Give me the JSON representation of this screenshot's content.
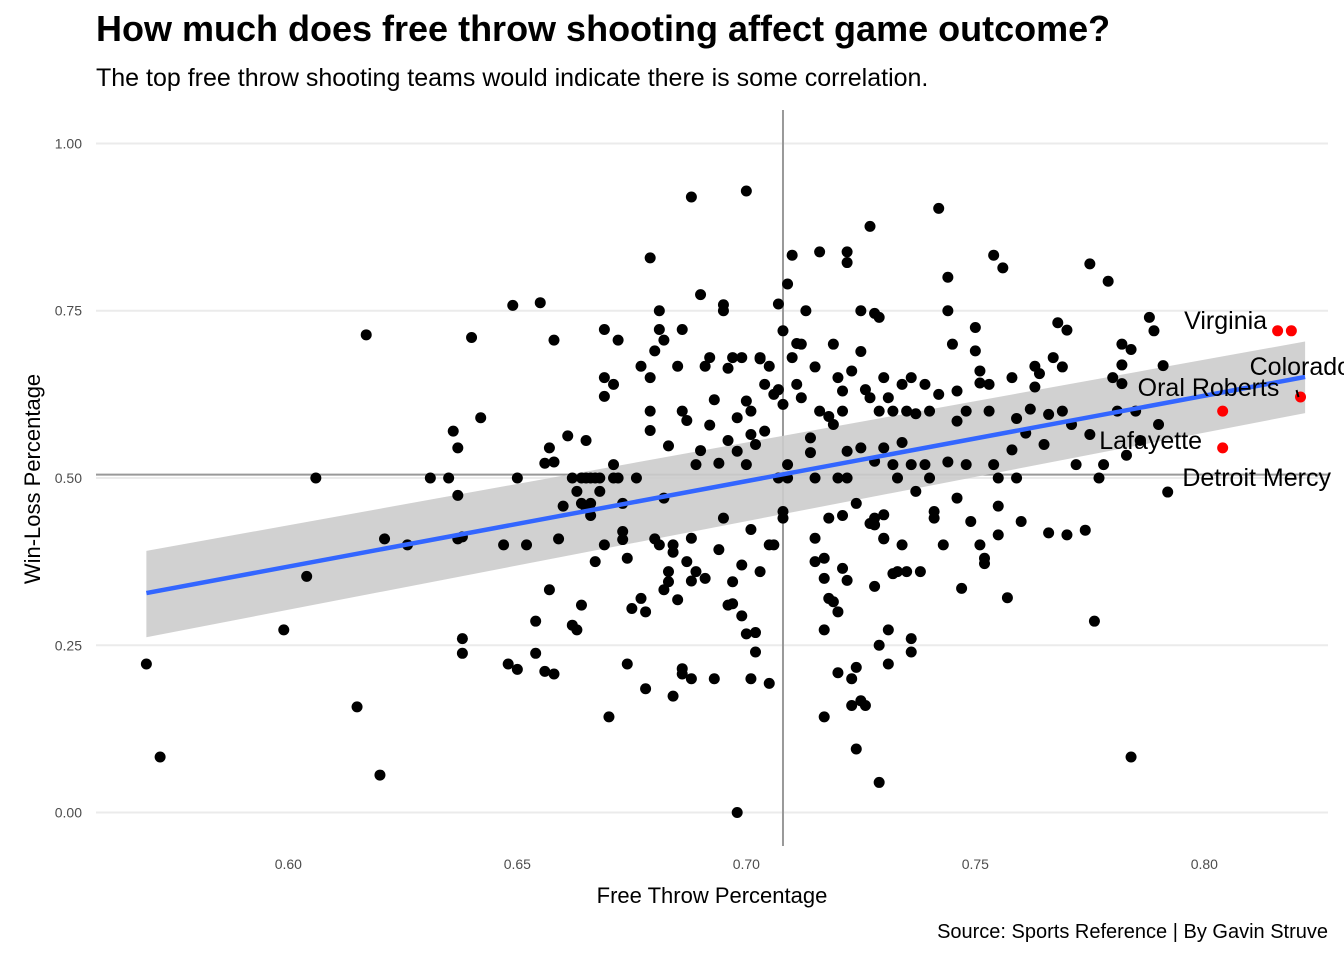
{
  "chart_data": {
    "type": "scatter",
    "title": "How much does free throw shooting affect game outcome?",
    "subtitle": "The top free throw shooting teams would indicate there is some correlation.",
    "caption": "Source: Sports Reference | By Gavin Struve",
    "xlabel": "Free Throw Percentage",
    "ylabel": "Win-Loss Percentage",
    "xlim": [
      0.558,
      0.827
    ],
    "ylim": [
      -0.05,
      1.05
    ],
    "xticks": [
      "0.60",
      "0.65",
      "0.70",
      "0.75",
      "0.80"
    ],
    "yticks": [
      "0.00",
      "0.25",
      "0.50",
      "0.75",
      "1.00"
    ],
    "grid": "horizontal",
    "reference_lines": {
      "mean_x": 0.708,
      "mean_y": 0.505
    },
    "trend": {
      "method": "lm",
      "x": [
        0.569,
        0.822
      ],
      "y": [
        0.328,
        0.651
      ],
      "ci_low": [
        0.262,
        0.597
      ],
      "ci_high": [
        0.391,
        0.704
      ]
    },
    "colors": {
      "points": "#000000",
      "highlight": "#ff0000",
      "trend": "#3366ff",
      "band": "#cccccc",
      "refline": "#999999"
    },
    "highlighted": [
      {
        "name": "Virginia",
        "x": 0.816,
        "y": 0.72
      },
      {
        "name": "Colorado",
        "x": 0.819,
        "y": 0.72
      },
      {
        "name": "Oral Roberts",
        "x": 0.821,
        "y": 0.621
      },
      {
        "name": "Lafayette",
        "x": 0.804,
        "y": 0.6
      },
      {
        "name": "Detroit Mercy",
        "x": 0.804,
        "y": 0.545
      }
    ],
    "points": [
      [
        0.569,
        0.222
      ],
      [
        0.572,
        0.083
      ],
      [
        0.599,
        0.273
      ],
      [
        0.604,
        0.353
      ],
      [
        0.606,
        0.5
      ],
      [
        0.615,
        0.158
      ],
      [
        0.617,
        0.714
      ],
      [
        0.62,
        0.056
      ],
      [
        0.621,
        0.409
      ],
      [
        0.626,
        0.4
      ],
      [
        0.631,
        0.5
      ],
      [
        0.635,
        0.5
      ],
      [
        0.636,
        0.57
      ],
      [
        0.637,
        0.545
      ],
      [
        0.637,
        0.474
      ],
      [
        0.637,
        0.409
      ],
      [
        0.638,
        0.412
      ],
      [
        0.638,
        0.26
      ],
      [
        0.638,
        0.238
      ],
      [
        0.64,
        0.71
      ],
      [
        0.642,
        0.59
      ],
      [
        0.647,
        0.4
      ],
      [
        0.648,
        0.222
      ],
      [
        0.649,
        0.758
      ],
      [
        0.65,
        0.214
      ],
      [
        0.65,
        0.5
      ],
      [
        0.652,
        0.4
      ],
      [
        0.654,
        0.286
      ],
      [
        0.654,
        0.238
      ],
      [
        0.655,
        0.762
      ],
      [
        0.656,
        0.211
      ],
      [
        0.656,
        0.522
      ],
      [
        0.657,
        0.333
      ],
      [
        0.657,
        0.545
      ],
      [
        0.658,
        0.524
      ],
      [
        0.658,
        0.706
      ],
      [
        0.658,
        0.207
      ],
      [
        0.659,
        0.409
      ],
      [
        0.66,
        0.458
      ],
      [
        0.661,
        0.563
      ],
      [
        0.662,
        0.28
      ],
      [
        0.662,
        0.5
      ],
      [
        0.663,
        0.273
      ],
      [
        0.663,
        0.48
      ],
      [
        0.664,
        0.5
      ],
      [
        0.664,
        0.462
      ],
      [
        0.664,
        0.31
      ],
      [
        0.665,
        0.556
      ],
      [
        0.665,
        0.455
      ],
      [
        0.665,
        0.5
      ],
      [
        0.666,
        0.5
      ],
      [
        0.666,
        0.444
      ],
      [
        0.666,
        0.462
      ],
      [
        0.667,
        0.5
      ],
      [
        0.667,
        0.375
      ],
      [
        0.668,
        0.5
      ],
      [
        0.668,
        0.48
      ],
      [
        0.669,
        0.4
      ],
      [
        0.669,
        0.722
      ],
      [
        0.669,
        0.65
      ],
      [
        0.669,
        0.622
      ],
      [
        0.67,
        0.143
      ],
      [
        0.671,
        0.64
      ],
      [
        0.671,
        0.52
      ],
      [
        0.671,
        0.5
      ],
      [
        0.672,
        0.706
      ],
      [
        0.672,
        0.5
      ],
      [
        0.673,
        0.408
      ],
      [
        0.673,
        0.42
      ],
      [
        0.673,
        0.462
      ],
      [
        0.674,
        0.222
      ],
      [
        0.674,
        0.38
      ],
      [
        0.675,
        0.305
      ],
      [
        0.676,
        0.5
      ],
      [
        0.677,
        0.667
      ],
      [
        0.677,
        0.32
      ],
      [
        0.678,
        0.185
      ],
      [
        0.678,
        0.3
      ],
      [
        0.679,
        0.65
      ],
      [
        0.679,
        0.571
      ],
      [
        0.679,
        0.6
      ],
      [
        0.679,
        0.829
      ],
      [
        0.68,
        0.409
      ],
      [
        0.68,
        0.69
      ],
      [
        0.681,
        0.722
      ],
      [
        0.681,
        0.75
      ],
      [
        0.681,
        0.4
      ],
      [
        0.682,
        0.706
      ],
      [
        0.682,
        0.47
      ],
      [
        0.682,
        0.333
      ],
      [
        0.683,
        0.36
      ],
      [
        0.683,
        0.345
      ],
      [
        0.683,
        0.548
      ],
      [
        0.684,
        0.389
      ],
      [
        0.684,
        0.174
      ],
      [
        0.684,
        0.4
      ],
      [
        0.685,
        0.667
      ],
      [
        0.685,
        0.318
      ],
      [
        0.686,
        0.6
      ],
      [
        0.686,
        0.722
      ],
      [
        0.686,
        0.215
      ],
      [
        0.686,
        0.207
      ],
      [
        0.687,
        0.375
      ],
      [
        0.687,
        0.586
      ],
      [
        0.688,
        0.41
      ],
      [
        0.688,
        0.92
      ],
      [
        0.688,
        0.2
      ],
      [
        0.688,
        0.346
      ],
      [
        0.689,
        0.36
      ],
      [
        0.689,
        0.52
      ],
      [
        0.69,
        0.774
      ],
      [
        0.69,
        0.541
      ],
      [
        0.691,
        0.35
      ],
      [
        0.691,
        0.667
      ],
      [
        0.692,
        0.579
      ],
      [
        0.692,
        0.68
      ],
      [
        0.693,
        0.2
      ],
      [
        0.693,
        0.617
      ],
      [
        0.694,
        0.522
      ],
      [
        0.694,
        0.393
      ],
      [
        0.695,
        0.75
      ],
      [
        0.695,
        0.44
      ],
      [
        0.695,
        0.759
      ],
      [
        0.696,
        0.31
      ],
      [
        0.696,
        0.556
      ],
      [
        0.696,
        0.664
      ],
      [
        0.697,
        0.312
      ],
      [
        0.697,
        0.345
      ],
      [
        0.697,
        0.68
      ],
      [
        0.698,
        0.0
      ],
      [
        0.698,
        0.59
      ],
      [
        0.698,
        0.54
      ],
      [
        0.699,
        0.37
      ],
      [
        0.699,
        0.294
      ],
      [
        0.699,
        0.68
      ],
      [
        0.7,
        0.929
      ],
      [
        0.7,
        0.52
      ],
      [
        0.7,
        0.267
      ],
      [
        0.7,
        0.615
      ],
      [
        0.701,
        0.6
      ],
      [
        0.701,
        0.565
      ],
      [
        0.701,
        0.423
      ],
      [
        0.701,
        0.2
      ],
      [
        0.702,
        0.269
      ],
      [
        0.702,
        0.55
      ],
      [
        0.702,
        0.24
      ],
      [
        0.703,
        0.68
      ],
      [
        0.703,
        0.678
      ],
      [
        0.703,
        0.36
      ],
      [
        0.704,
        0.57
      ],
      [
        0.704,
        0.64
      ],
      [
        0.705,
        0.4
      ],
      [
        0.705,
        0.193
      ],
      [
        0.705,
        0.667
      ],
      [
        0.706,
        0.4
      ],
      [
        0.706,
        0.625
      ],
      [
        0.707,
        0.76
      ],
      [
        0.707,
        0.632
      ],
      [
        0.707,
        0.5
      ],
      [
        0.708,
        0.72
      ],
      [
        0.708,
        0.61
      ],
      [
        0.708,
        0.45
      ],
      [
        0.708,
        0.44
      ],
      [
        0.709,
        0.79
      ],
      [
        0.709,
        0.52
      ],
      [
        0.709,
        0.5
      ],
      [
        0.71,
        0.833
      ],
      [
        0.71,
        0.68
      ],
      [
        0.711,
        0.64
      ],
      [
        0.711,
        0.701
      ],
      [
        0.712,
        0.7
      ],
      [
        0.712,
        0.62
      ],
      [
        0.713,
        0.75
      ],
      [
        0.714,
        0.56
      ],
      [
        0.714,
        0.538
      ],
      [
        0.715,
        0.666
      ],
      [
        0.715,
        0.5
      ],
      [
        0.715,
        0.41
      ],
      [
        0.715,
        0.375
      ],
      [
        0.716,
        0.838
      ],
      [
        0.716,
        0.6
      ],
      [
        0.717,
        0.38
      ],
      [
        0.717,
        0.35
      ],
      [
        0.717,
        0.273
      ],
      [
        0.717,
        0.143
      ],
      [
        0.718,
        0.592
      ],
      [
        0.718,
        0.44
      ],
      [
        0.718,
        0.32
      ],
      [
        0.719,
        0.7
      ],
      [
        0.719,
        0.58
      ],
      [
        0.719,
        0.315
      ],
      [
        0.72,
        0.65
      ],
      [
        0.72,
        0.5
      ],
      [
        0.72,
        0.3
      ],
      [
        0.72,
        0.209
      ],
      [
        0.721,
        0.6
      ],
      [
        0.721,
        0.63
      ],
      [
        0.721,
        0.444
      ],
      [
        0.721,
        0.365
      ],
      [
        0.722,
        0.838
      ],
      [
        0.722,
        0.822
      ],
      [
        0.722,
        0.54
      ],
      [
        0.722,
        0.5
      ],
      [
        0.722,
        0.347
      ],
      [
        0.723,
        0.66
      ],
      [
        0.723,
        0.2
      ],
      [
        0.723,
        0.16
      ],
      [
        0.724,
        0.217
      ],
      [
        0.724,
        0.462
      ],
      [
        0.724,
        0.095
      ],
      [
        0.725,
        0.545
      ],
      [
        0.725,
        0.75
      ],
      [
        0.725,
        0.689
      ],
      [
        0.725,
        0.167
      ],
      [
        0.726,
        0.16
      ],
      [
        0.726,
        0.632
      ],
      [
        0.727,
        0.876
      ],
      [
        0.727,
        0.62
      ],
      [
        0.727,
        0.432
      ],
      [
        0.728,
        0.746
      ],
      [
        0.728,
        0.525
      ],
      [
        0.728,
        0.43
      ],
      [
        0.728,
        0.44
      ],
      [
        0.728,
        0.338
      ],
      [
        0.729,
        0.6
      ],
      [
        0.729,
        0.045
      ],
      [
        0.729,
        0.25
      ],
      [
        0.729,
        0.74
      ],
      [
        0.73,
        0.41
      ],
      [
        0.73,
        0.409
      ],
      [
        0.73,
        0.445
      ],
      [
        0.73,
        0.545
      ],
      [
        0.73,
        0.65
      ],
      [
        0.731,
        0.62
      ],
      [
        0.731,
        0.273
      ],
      [
        0.731,
        0.222
      ],
      [
        0.732,
        0.6
      ],
      [
        0.732,
        0.52
      ],
      [
        0.732,
        0.357
      ],
      [
        0.733,
        0.5
      ],
      [
        0.733,
        0.36
      ],
      [
        0.734,
        0.553
      ],
      [
        0.734,
        0.64
      ],
      [
        0.734,
        0.4
      ],
      [
        0.735,
        0.6
      ],
      [
        0.735,
        0.36
      ],
      [
        0.736,
        0.52
      ],
      [
        0.736,
        0.65
      ],
      [
        0.736,
        0.26
      ],
      [
        0.736,
        0.24
      ],
      [
        0.737,
        0.596
      ],
      [
        0.737,
        0.48
      ],
      [
        0.738,
        0.36
      ],
      [
        0.739,
        0.52
      ],
      [
        0.739,
        0.64
      ],
      [
        0.74,
        0.6
      ],
      [
        0.74,
        0.5
      ],
      [
        0.741,
        0.44
      ],
      [
        0.741,
        0.45
      ],
      [
        0.742,
        0.903
      ],
      [
        0.742,
        0.625
      ],
      [
        0.743,
        0.4
      ],
      [
        0.744,
        0.75
      ],
      [
        0.744,
        0.8
      ],
      [
        0.744,
        0.524
      ],
      [
        0.745,
        0.7
      ],
      [
        0.746,
        0.585
      ],
      [
        0.746,
        0.63
      ],
      [
        0.746,
        0.47
      ],
      [
        0.747,
        0.335
      ],
      [
        0.748,
        0.6
      ],
      [
        0.748,
        0.52
      ],
      [
        0.749,
        0.435
      ],
      [
        0.75,
        0.725
      ],
      [
        0.75,
        0.69
      ],
      [
        0.751,
        0.66
      ],
      [
        0.751,
        0.642
      ],
      [
        0.751,
        0.4
      ],
      [
        0.752,
        0.38
      ],
      [
        0.752,
        0.372
      ],
      [
        0.753,
        0.6
      ],
      [
        0.753,
        0.64
      ],
      [
        0.754,
        0.833
      ],
      [
        0.754,
        0.52
      ],
      [
        0.755,
        0.5
      ],
      [
        0.755,
        0.458
      ],
      [
        0.755,
        0.415
      ],
      [
        0.756,
        0.814
      ],
      [
        0.757,
        0.321
      ],
      [
        0.758,
        0.65
      ],
      [
        0.758,
        0.542
      ],
      [
        0.759,
        0.5
      ],
      [
        0.759,
        0.589
      ],
      [
        0.76,
        0.435
      ],
      [
        0.761,
        0.567
      ],
      [
        0.762,
        0.603
      ],
      [
        0.763,
        0.667
      ],
      [
        0.763,
        0.636
      ],
      [
        0.764,
        0.656
      ],
      [
        0.765,
        0.55
      ],
      [
        0.766,
        0.595
      ],
      [
        0.766,
        0.418
      ],
      [
        0.767,
        0.68
      ],
      [
        0.768,
        0.732
      ],
      [
        0.769,
        0.6
      ],
      [
        0.769,
        0.666
      ],
      [
        0.77,
        0.721
      ],
      [
        0.77,
        0.415
      ],
      [
        0.771,
        0.58
      ],
      [
        0.772,
        0.52
      ],
      [
        0.774,
        0.422
      ],
      [
        0.775,
        0.82
      ],
      [
        0.775,
        0.565
      ],
      [
        0.776,
        0.286
      ],
      [
        0.777,
        0.5
      ],
      [
        0.778,
        0.52
      ],
      [
        0.779,
        0.794
      ],
      [
        0.78,
        0.65
      ],
      [
        0.781,
        0.6
      ],
      [
        0.782,
        0.7
      ],
      [
        0.782,
        0.669
      ],
      [
        0.782,
        0.641
      ],
      [
        0.783,
        0.534
      ],
      [
        0.784,
        0.083
      ],
      [
        0.784,
        0.692
      ],
      [
        0.785,
        0.6
      ],
      [
        0.786,
        0.556
      ],
      [
        0.788,
        0.74
      ],
      [
        0.789,
        0.72
      ],
      [
        0.79,
        0.58
      ],
      [
        0.791,
        0.668
      ],
      [
        0.792,
        0.479
      ]
    ]
  }
}
